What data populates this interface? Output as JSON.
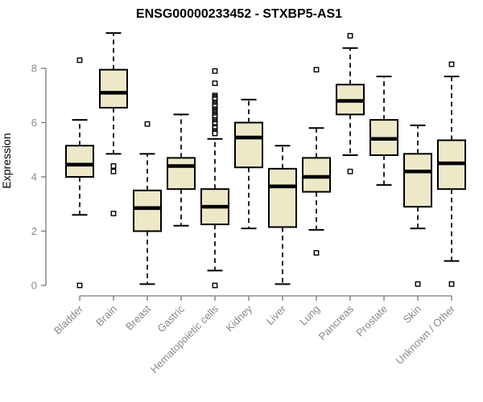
{
  "title": "ENSG00000233452 - STXBP5-AS1",
  "chart_data": {
    "type": "boxplot",
    "title": "ENSG00000233452 - STXBP5-AS1",
    "xlabel": "",
    "ylabel": "Expression",
    "ylim": [
      0,
      9.4
    ],
    "yticks": [
      0,
      2,
      4,
      6,
      8
    ],
    "grid": false,
    "legend": "none",
    "categories": [
      "Bladder",
      "Brain",
      "Breast",
      "Gastric",
      "Hematopoietic cells",
      "Kidney",
      "Liver",
      "Lung",
      "Pancreas",
      "Prostate",
      "Skin",
      "Unknown / Other"
    ],
    "series": [
      {
        "name": "Bladder",
        "whisker_low": 2.6,
        "q1": 4.0,
        "median": 4.45,
        "q3": 5.15,
        "whisker_high": 6.1,
        "outliers": [
          8.3,
          0.0
        ]
      },
      {
        "name": "Brain",
        "whisker_low": 4.85,
        "q1": 6.55,
        "median": 7.1,
        "q3": 7.95,
        "whisker_high": 9.3,
        "outliers": [
          4.4,
          4.2,
          2.65
        ]
      },
      {
        "name": "Breast",
        "whisker_low": 0.05,
        "q1": 2.0,
        "median": 2.85,
        "q3": 3.5,
        "whisker_high": 4.85,
        "outliers": [
          5.95
        ]
      },
      {
        "name": "Gastric",
        "whisker_low": 2.2,
        "q1": 3.55,
        "median": 4.4,
        "q3": 4.7,
        "whisker_high": 6.3,
        "outliers": []
      },
      {
        "name": "Hematopoietic cells",
        "whisker_low": 0.55,
        "q1": 2.25,
        "median": 2.9,
        "q3": 3.55,
        "whisker_high": 5.4,
        "outliers": [
          7.9,
          7.45,
          7.0,
          6.95,
          6.9,
          6.85,
          6.75,
          6.7,
          6.65,
          6.6,
          6.5,
          6.45,
          6.4,
          6.35,
          6.3,
          6.25,
          6.2,
          6.1,
          6.05,
          6.0,
          5.95,
          5.85,
          5.8,
          5.7,
          5.65,
          5.6,
          0.0
        ]
      },
      {
        "name": "Kidney",
        "whisker_low": 2.1,
        "q1": 4.35,
        "median": 5.45,
        "q3": 6.0,
        "whisker_high": 6.85,
        "outliers": []
      },
      {
        "name": "Liver",
        "whisker_low": 0.05,
        "q1": 2.15,
        "median": 3.65,
        "q3": 4.3,
        "whisker_high": 5.15,
        "outliers": []
      },
      {
        "name": "Lung",
        "whisker_low": 2.05,
        "q1": 3.45,
        "median": 4.0,
        "q3": 4.7,
        "whisker_high": 5.8,
        "outliers": [
          7.95,
          1.2
        ]
      },
      {
        "name": "Pancreas",
        "whisker_low": 4.8,
        "q1": 6.3,
        "median": 6.8,
        "q3": 7.4,
        "whisker_high": 8.75,
        "outliers": [
          9.2,
          4.2
        ]
      },
      {
        "name": "Prostate",
        "whisker_low": 3.7,
        "q1": 4.8,
        "median": 5.4,
        "q3": 6.1,
        "whisker_high": 7.7,
        "outliers": []
      },
      {
        "name": "Skin",
        "whisker_low": 2.1,
        "q1": 2.9,
        "median": 4.2,
        "q3": 4.85,
        "whisker_high": 5.9,
        "outliers": [
          0.05
        ]
      },
      {
        "name": "Unknown / Other",
        "whisker_low": 0.9,
        "q1": 3.55,
        "median": 4.5,
        "q3": 5.35,
        "whisker_high": 7.7,
        "outliers": [
          8.15,
          0.05
        ]
      }
    ],
    "colors": {
      "box_fill": "#EDE8C8",
      "box_stroke": "#000000",
      "median_stroke": "#000000",
      "outlier_stroke": "#000000",
      "outlier_fill": "#FFFFFF",
      "axis_line": "#7a7a7a",
      "tick_label": "#8a8a8a",
      "title": "#000000",
      "background": "#FFFFFF"
    }
  }
}
